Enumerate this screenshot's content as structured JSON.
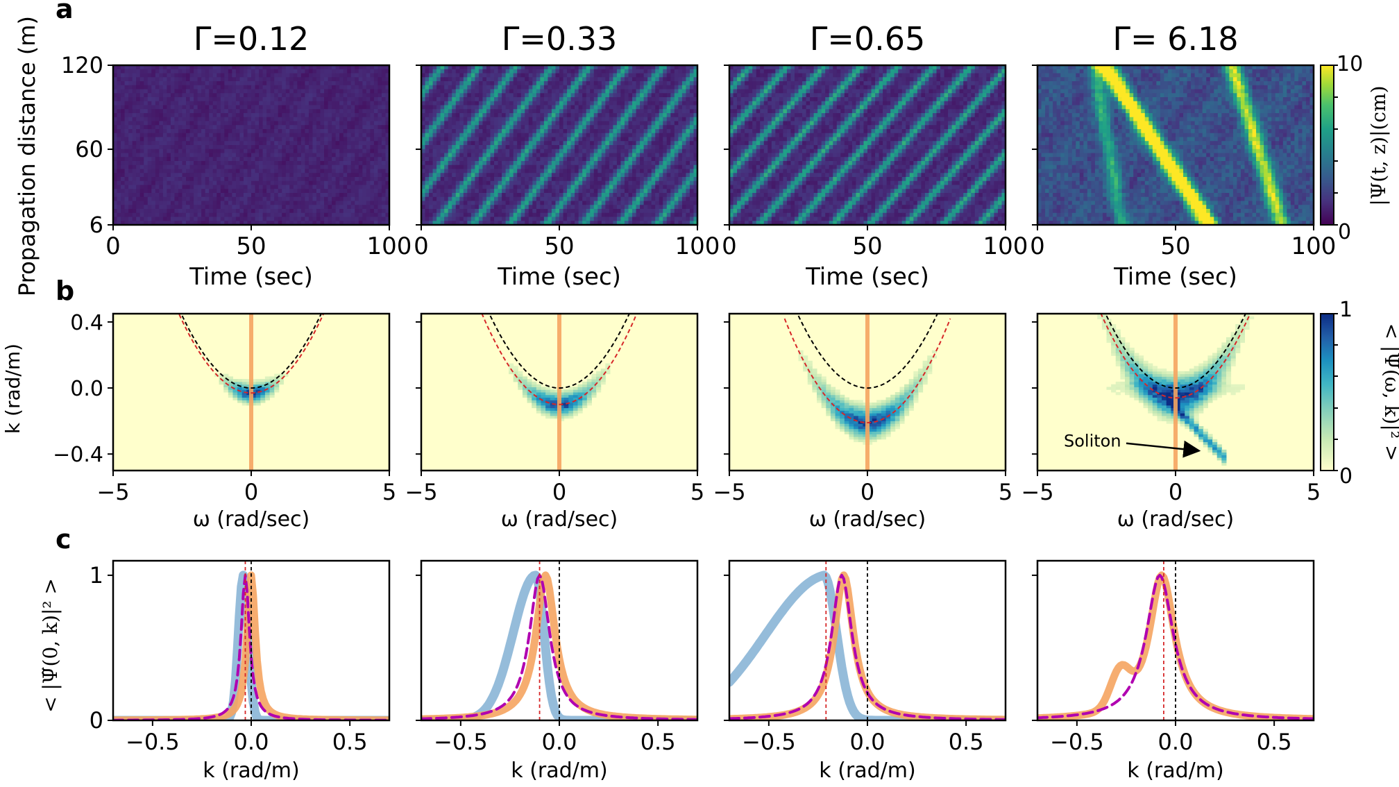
{
  "figure": {
    "panel_letters": [
      "a",
      "b",
      "c"
    ],
    "columns": [
      {
        "title": "Γ=0.12"
      },
      {
        "title": "Γ=0.33"
      },
      {
        "title": "Γ=0.65"
      },
      {
        "title": "Γ= 6.18"
      }
    ],
    "colors": {
      "viridis": [
        "#440154",
        "#46327e",
        "#365c8d",
        "#277f8e",
        "#1fa187",
        "#4ac16d",
        "#a0da39",
        "#fde725"
      ],
      "spectrum": [
        "#ffffcc",
        "#c7e9b4",
        "#7fcdbb",
        "#41b6c4",
        "#1d91c0",
        "#225ea8",
        "#0c2c84"
      ],
      "orange": "#f5a460",
      "blue": "#8fb8d8",
      "red_dashed": "#d62728",
      "magenta_dashed": "#b000b0"
    }
  },
  "chart_data": [
    {
      "type": "heatmap",
      "panel": "a",
      "ylabel": "Propagation distance (m)",
      "xlabel": "Time (sec)",
      "x_ticks": [
        "0",
        "50",
        "100"
      ],
      "y_ticks": [
        "6",
        "60",
        "120"
      ],
      "xlim": [
        0,
        100
      ],
      "ylim": [
        6,
        120
      ],
      "colorbar": {
        "label": "|Ψ(t, z)|(cm)",
        "min": "0",
        "max": "10"
      },
      "max_amplitude_cm": [
        3.5,
        5.0,
        5.2,
        9.0
      ]
    },
    {
      "type": "heatmap",
      "panel": "b",
      "ylabel": "k (rad/m)",
      "xlabel": "ω (rad/sec)",
      "x_ticks": [
        "−5",
        "0",
        "5"
      ],
      "y_ticks": [
        "0.4",
        "0.0",
        "−0.4"
      ],
      "xlim": [
        -5,
        5
      ],
      "ylim": [
        -0.5,
        0.45
      ],
      "colorbar": {
        "label": "< |Ψ̃(ω, k)|² >",
        "min": "0",
        "max": "1"
      },
      "annotation": "Soliton",
      "dispersion_offsets_k": [
        -0.03,
        -0.1,
        -0.21,
        -0.06
      ]
    },
    {
      "type": "line",
      "panel": "c",
      "ylabel": "< |Ψ̃(0, k)|² >",
      "xlabel": "k (rad/m)",
      "x_ticks": [
        "−0.5",
        "0.0",
        "0.5"
      ],
      "y_ticks": [
        "0",
        "1"
      ],
      "xlim": [
        -0.7,
        0.7
      ],
      "ylim": [
        0,
        1.1
      ],
      "peak_k": {
        "orange": [
          0.0,
          -0.07,
          -0.12,
          -0.07
        ],
        "blue": [
          -0.04,
          -0.12,
          -0.22,
          null
        ],
        "magenta": [
          -0.03,
          -0.1,
          -0.13,
          -0.08
        ]
      },
      "red_line_k": [
        -0.03,
        -0.1,
        -0.21,
        -0.06
      ]
    }
  ]
}
